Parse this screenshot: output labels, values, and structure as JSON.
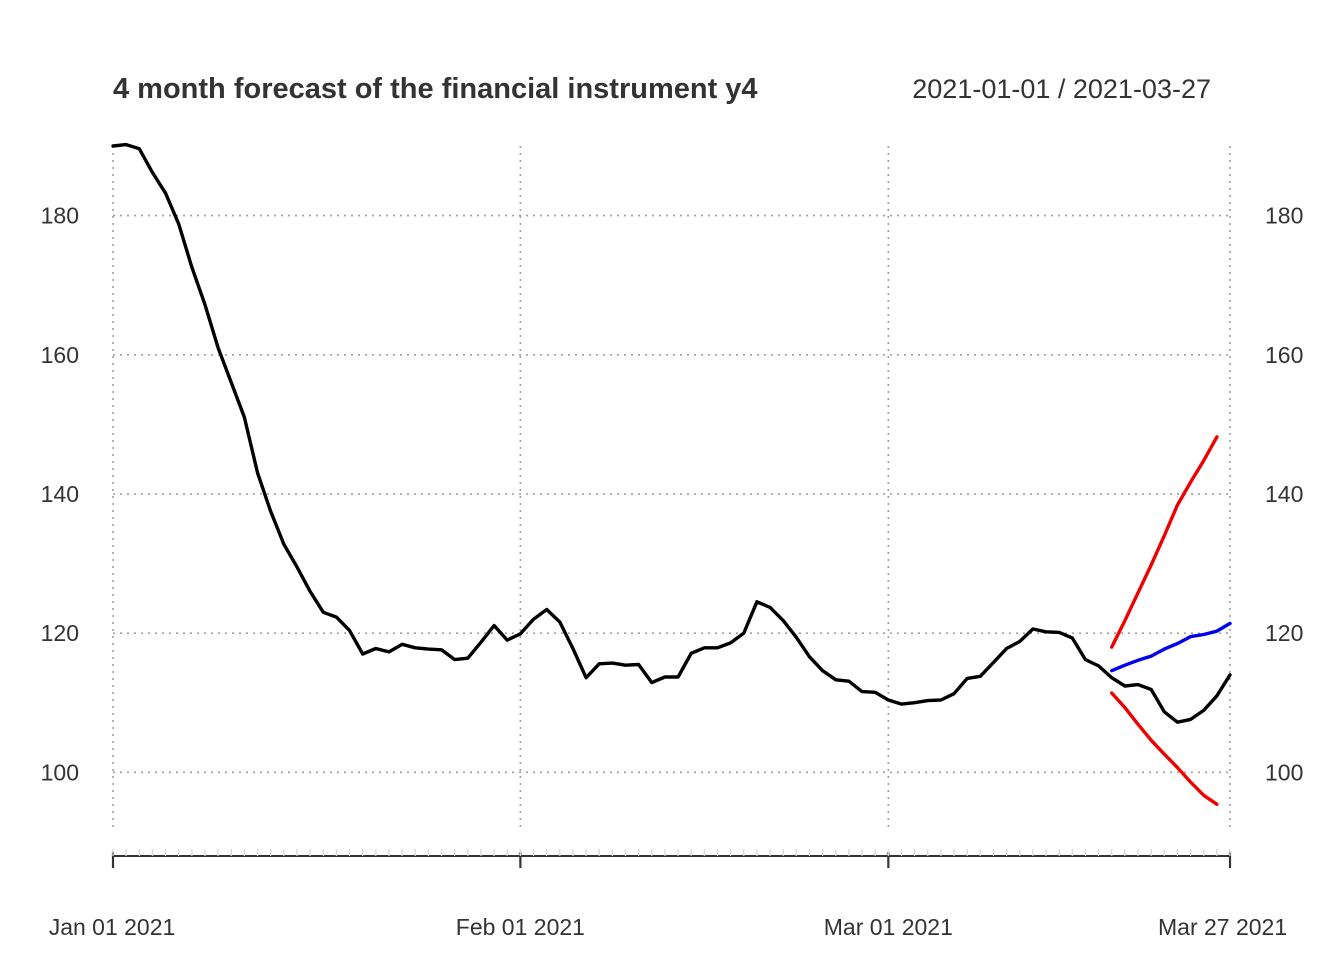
{
  "chart_data": {
    "type": "line",
    "title": "4 month forecast of the financial instrument y4",
    "date_range_label": "2021-01-01 / 2021-03-27",
    "x_start": "2021-01-01",
    "x_end": "2021-03-27",
    "x_ticks": [
      {
        "date": "2021-01-01",
        "label": "Jan 01 2021"
      },
      {
        "date": "2021-02-01",
        "label": "Feb 01 2021"
      },
      {
        "date": "2021-03-01",
        "label": "Mar 01 2021"
      },
      {
        "date": "2021-03-27",
        "label": "Mar 27 2021"
      }
    ],
    "ylim": [
      92,
      190
    ],
    "y_ticks": [
      100,
      120,
      140,
      160,
      180
    ],
    "grid": true,
    "series": [
      {
        "color": "#000000",
        "points": [
          [
            "2021-01-01",
            190.0
          ],
          [
            "2021-01-02",
            190.2
          ],
          [
            "2021-01-03",
            189.6
          ],
          [
            "2021-01-04",
            186.2
          ],
          [
            "2021-01-05",
            183.2
          ],
          [
            "2021-01-06",
            178.8
          ],
          [
            "2021-01-07",
            172.6
          ],
          [
            "2021-01-08",
            167.2
          ],
          [
            "2021-01-09",
            161.0
          ],
          [
            "2021-01-10",
            156.0
          ],
          [
            "2021-01-11",
            151.0
          ],
          [
            "2021-01-12",
            143.0
          ],
          [
            "2021-01-13",
            137.5
          ],
          [
            "2021-01-14",
            132.8
          ],
          [
            "2021-01-15",
            129.5
          ],
          [
            "2021-01-16",
            126.0
          ],
          [
            "2021-01-17",
            123.0
          ],
          [
            "2021-01-18",
            122.3
          ],
          [
            "2021-01-19",
            120.4
          ],
          [
            "2021-01-20",
            117.0
          ],
          [
            "2021-01-21",
            117.8
          ],
          [
            "2021-01-22",
            117.3
          ],
          [
            "2021-01-23",
            118.4
          ],
          [
            "2021-01-24",
            117.9
          ],
          [
            "2021-01-25",
            117.7
          ],
          [
            "2021-01-26",
            117.6
          ],
          [
            "2021-01-27",
            116.2
          ],
          [
            "2021-01-28",
            116.4
          ],
          [
            "2021-01-29",
            118.7
          ],
          [
            "2021-01-30",
            121.1
          ],
          [
            "2021-01-31",
            119.0
          ],
          [
            "2021-02-01",
            119.9
          ],
          [
            "2021-02-02",
            122.0
          ],
          [
            "2021-02-03",
            123.4
          ],
          [
            "2021-02-04",
            121.6
          ],
          [
            "2021-02-05",
            117.8
          ],
          [
            "2021-02-06",
            113.6
          ],
          [
            "2021-02-07",
            115.6
          ],
          [
            "2021-02-08",
            115.7
          ],
          [
            "2021-02-09",
            115.4
          ],
          [
            "2021-02-10",
            115.5
          ],
          [
            "2021-02-11",
            112.9
          ],
          [
            "2021-02-12",
            113.7
          ],
          [
            "2021-02-13",
            113.7
          ],
          [
            "2021-02-14",
            117.1
          ],
          [
            "2021-02-15",
            117.9
          ],
          [
            "2021-02-16",
            117.9
          ],
          [
            "2021-02-17",
            118.6
          ],
          [
            "2021-02-18",
            120.0
          ],
          [
            "2021-02-19",
            124.5
          ],
          [
            "2021-02-20",
            123.7
          ],
          [
            "2021-02-21",
            121.8
          ],
          [
            "2021-02-22",
            119.4
          ],
          [
            "2021-02-23",
            116.6
          ],
          [
            "2021-02-24",
            114.6
          ],
          [
            "2021-02-25",
            113.3
          ],
          [
            "2021-02-26",
            113.1
          ],
          [
            "2021-02-27",
            111.6
          ],
          [
            "2021-02-28",
            111.5
          ],
          [
            "2021-03-01",
            110.4
          ],
          [
            "2021-03-02",
            109.8
          ],
          [
            "2021-03-03",
            110.0
          ],
          [
            "2021-03-04",
            110.3
          ],
          [
            "2021-03-05",
            110.4
          ],
          [
            "2021-03-06",
            111.3
          ],
          [
            "2021-03-07",
            113.5
          ],
          [
            "2021-03-08",
            113.8
          ],
          [
            "2021-03-09",
            115.8
          ],
          [
            "2021-03-10",
            117.8
          ],
          [
            "2021-03-11",
            118.8
          ],
          [
            "2021-03-12",
            120.6
          ],
          [
            "2021-03-13",
            120.2
          ],
          [
            "2021-03-14",
            120.1
          ],
          [
            "2021-03-15",
            119.3
          ],
          [
            "2021-03-16",
            116.2
          ],
          [
            "2021-03-17",
            115.3
          ],
          [
            "2021-03-18",
            113.6
          ],
          [
            "2021-03-19",
            112.4
          ],
          [
            "2021-03-20",
            112.6
          ],
          [
            "2021-03-21",
            111.9
          ],
          [
            "2021-03-22",
            108.7
          ],
          [
            "2021-03-23",
            107.2
          ],
          [
            "2021-03-24",
            107.6
          ],
          [
            "2021-03-25",
            108.9
          ],
          [
            "2021-03-26",
            111.0
          ],
          [
            "2021-03-27",
            114.0
          ]
        ]
      },
      {
        "color": "#0000ee",
        "points": [
          [
            "2021-03-18",
            114.6
          ],
          [
            "2021-03-19",
            115.4
          ],
          [
            "2021-03-20",
            116.1
          ],
          [
            "2021-03-21",
            116.7
          ],
          [
            "2021-03-22",
            117.7
          ],
          [
            "2021-03-23",
            118.5
          ],
          [
            "2021-03-24",
            119.5
          ],
          [
            "2021-03-25",
            119.8
          ],
          [
            "2021-03-26",
            120.3
          ],
          [
            "2021-03-27",
            121.4
          ]
        ]
      },
      {
        "color": "#ee0000",
        "points": [
          [
            "2021-03-18",
            118.0
          ],
          [
            "2021-03-19",
            121.8
          ],
          [
            "2021-03-20",
            125.8
          ],
          [
            "2021-03-21",
            129.8
          ],
          [
            "2021-03-22",
            134.0
          ],
          [
            "2021-03-23",
            138.4
          ],
          [
            "2021-03-24",
            141.7
          ],
          [
            "2021-03-25",
            144.8
          ],
          [
            "2021-03-26",
            148.2
          ]
        ]
      },
      {
        "color": "#ee0000",
        "points": [
          [
            "2021-03-18",
            111.4
          ],
          [
            "2021-03-19",
            109.3
          ],
          [
            "2021-03-20",
            106.9
          ],
          [
            "2021-03-21",
            104.6
          ],
          [
            "2021-03-22",
            102.6
          ],
          [
            "2021-03-23",
            100.7
          ],
          [
            "2021-03-24",
            98.6
          ],
          [
            "2021-03-25",
            96.7
          ],
          [
            "2021-03-26",
            95.4
          ]
        ]
      }
    ]
  }
}
